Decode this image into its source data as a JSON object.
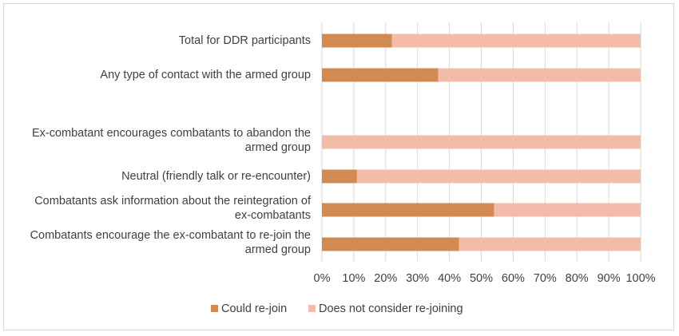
{
  "chart_data": {
    "type": "bar",
    "orientation": "horizontal",
    "stacked": true,
    "percent_stacked": true,
    "categories": [
      "Total for DDR participants",
      "Any type of contact with the armed group",
      "",
      "Ex-combatant encourages combatants to abandon the armed group",
      "Neutral (friendly talk or re-encounter)",
      "Combatants ask information about the reintegration of ex-combatants",
      "Combatants encourage the ex-combatant to re-join the armed group"
    ],
    "category_lines": [
      [
        "Total for DDR participants"
      ],
      [
        "Any type of contact with the armed group"
      ],
      [],
      [
        "Ex-combatant encourages combatants to abandon the",
        "armed group"
      ],
      [
        "Neutral (friendly talk or re-encounter)"
      ],
      [
        "Combatants ask information about the reintegration of",
        "ex-combatants"
      ],
      [
        "Combatants encourage the ex-combatant to re-join the",
        "armed group"
      ]
    ],
    "series": [
      {
        "name": "Could re-join",
        "color": "#d08a52",
        "values": [
          22,
          36.5,
          null,
          0,
          11,
          54,
          43
        ]
      },
      {
        "name": "Does not consider re-joining",
        "color": "#f2bca8",
        "values": [
          78,
          63.5,
          null,
          100,
          89,
          46,
          57
        ]
      }
    ],
    "xlim": [
      0,
      100
    ],
    "x_ticks": [
      "0%",
      "10%",
      "20%",
      "30%",
      "40%",
      "50%",
      "60%",
      "70%",
      "80%",
      "90%",
      "100%"
    ],
    "grid": "vertical",
    "grid_color": "#d9d9d9",
    "legend_position": "bottom",
    "title": "",
    "xlabel": "",
    "ylabel": ""
  }
}
